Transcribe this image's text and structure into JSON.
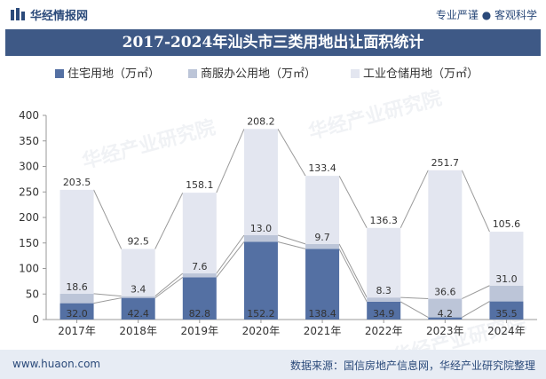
{
  "header": {
    "brand": "华经情报网",
    "tagline": "专业严谨 ● 客观科学"
  },
  "footer": {
    "url": "www.huaon.com",
    "source": "数据来源：国信房地产信息网，华经产业研究院整理"
  },
  "watermark": "华经产业研究院",
  "colors": {
    "residential": "#5470a3",
    "commercial": "#bcc5d8",
    "industrial": "#e3e6f0",
    "title_band": "#3e5986"
  },
  "chart_data": {
    "type": "bar",
    "stacked": true,
    "title": "2017-2024年汕头市三类用地出让面积统计",
    "categories": [
      "2017年",
      "2018年",
      "2019年",
      "2020年",
      "2021年",
      "2022年",
      "2023年",
      "2024年"
    ],
    "series": [
      {
        "name": "住宅用地（万㎡）",
        "values": [
          32.0,
          42.4,
          82.8,
          152.2,
          138.4,
          34.9,
          4.2,
          35.5
        ]
      },
      {
        "name": "商服办公用地（万㎡）",
        "values": [
          18.6,
          3.4,
          7.6,
          13.0,
          9.7,
          8.3,
          36.6,
          31.0
        ]
      },
      {
        "name": "工业仓储用地（万㎡）",
        "values": [
          203.5,
          92.5,
          158.1,
          208.2,
          133.4,
          136.3,
          251.7,
          105.6
        ]
      }
    ],
    "ylim": [
      0,
      400
    ],
    "yticks": [
      0,
      50,
      100,
      150,
      200,
      250,
      300,
      350,
      400
    ],
    "grid": false,
    "legend_position": "top"
  }
}
